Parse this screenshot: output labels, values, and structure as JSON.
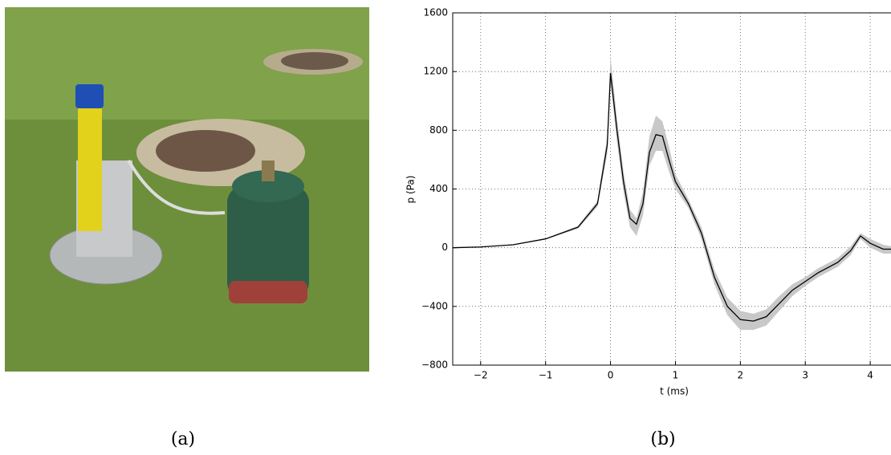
{
  "captions": [
    "(a)",
    "(b)"
  ],
  "chart_data": {
    "type": "line",
    "xlabel": "t (ms)",
    "ylabel": "p (Pa)",
    "x": [
      -2.43,
      -2,
      -1.5,
      -1,
      -0.5,
      -0.2,
      -0.05,
      0,
      0.1,
      0.2,
      0.3,
      0.4,
      0.5,
      0.6,
      0.7,
      0.8,
      0.9,
      1.0,
      1.2,
      1.4,
      1.6,
      1.8,
      2.0,
      2.2,
      2.4,
      2.6,
      2.8,
      3.0,
      3.2,
      3.5,
      3.7,
      3.85,
      4.0,
      4.2,
      4.32
    ],
    "series": [
      {
        "color": "#000000",
        "values": [
          0,
          5,
          20,
          60,
          140,
          300,
          700,
          1190,
          800,
          450,
          200,
          160,
          300,
          650,
          770,
          760,
          600,
          450,
          300,
          100,
          -200,
          -400,
          -490,
          -500,
          -470,
          -380,
          -290,
          -230,
          -170,
          -100,
          -20,
          80,
          30,
          -10,
          -10
        ]
      }
    ],
    "band": {
      "color": "#c8c8c8",
      "upper": [
        0,
        5,
        22,
        63,
        150,
        320,
        760,
        1300,
        880,
        520,
        260,
        200,
        380,
        760,
        900,
        860,
        690,
        500,
        330,
        140,
        -150,
        -340,
        -430,
        -450,
        -420,
        -330,
        -250,
        -200,
        -140,
        -70,
        10,
        100,
        60,
        20,
        10
      ],
      "lower": [
        0,
        5,
        18,
        57,
        130,
        280,
        640,
        1120,
        720,
        380,
        140,
        80,
        220,
        560,
        660,
        660,
        520,
        400,
        270,
        60,
        -250,
        -460,
        -560,
        -560,
        -530,
        -430,
        -330,
        -260,
        -200,
        -130,
        -50,
        60,
        0,
        -40,
        -40
      ]
    },
    "xlim": [
      -2.43,
      4.32
    ],
    "ylim": [
      -800,
      1600
    ],
    "xticks": [
      {
        "value": -2,
        "label": "−2"
      },
      {
        "value": -1,
        "label": "−1"
      },
      0,
      1,
      2,
      3,
      4
    ],
    "yticks": [
      {
        "value": -800,
        "label": "−800"
      },
      {
        "value": -400,
        "label": "−400"
      },
      0,
      400,
      800,
      1200,
      1600
    ],
    "grid": true
  }
}
